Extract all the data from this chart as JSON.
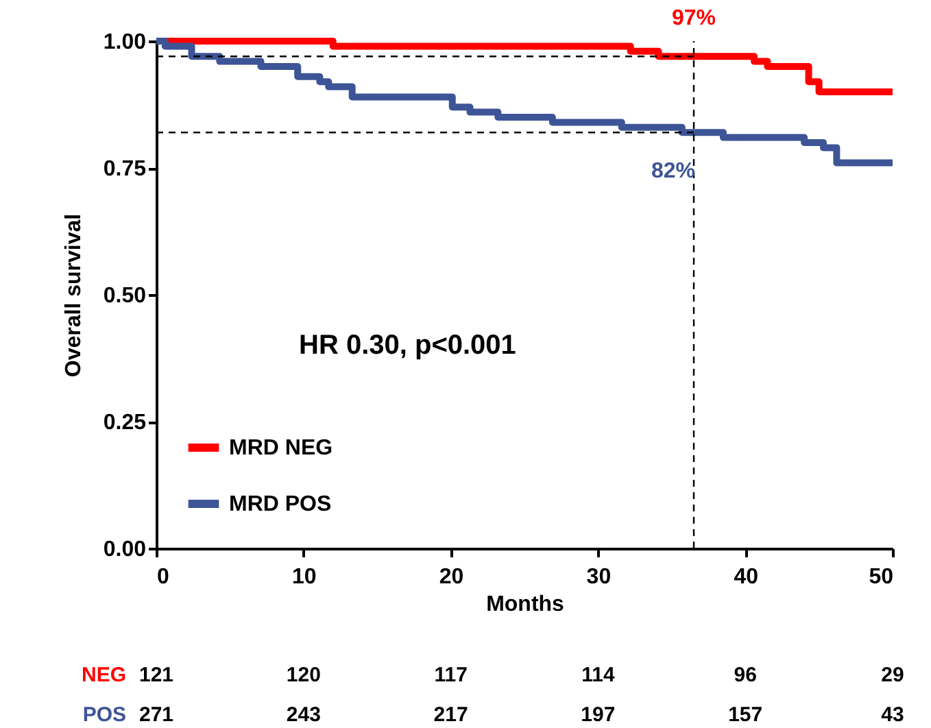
{
  "chart_data": {
    "type": "step",
    "xlabel": "Months",
    "ylabel": "Overall survival",
    "xlim": [
      0,
      50
    ],
    "xticks": [
      0,
      10,
      20,
      30,
      40,
      50
    ],
    "ylim": [
      0,
      1
    ],
    "yticks": [
      {
        "value": 0,
        "label": "0.00"
      },
      {
        "value": 0.25,
        "label": "0.25"
      },
      {
        "value": 0.5,
        "label": "0.50"
      },
      {
        "value": 0.75,
        "label": "0.75"
      },
      {
        "value": 1,
        "label": "1.00"
      }
    ],
    "grid": false,
    "legend": "bottom left",
    "line_style": "solid",
    "marker": "none",
    "series": [
      {
        "name": "MRD NEG",
        "color": "#ff0000",
        "x": [
          0,
          12.0,
          29.4,
          32.2,
          34.1,
          40.6,
          41.5,
          44.3,
          45.0,
          50
        ],
        "values": [
          1.0,
          0.99,
          0.99,
          0.98,
          0.97,
          0.96,
          0.95,
          0.92,
          0.9,
          0.9
        ]
      },
      {
        "name": "MRD POS",
        "color": "#3d5496",
        "x": [
          0,
          0.6,
          2.4,
          4.3,
          7.1,
          9.6,
          11.1,
          11.7,
          13.3,
          16.1,
          20.1,
          21.3,
          23.2,
          26.9,
          31.6,
          35.7,
          38.5,
          44.0,
          45.3,
          46.2,
          50
        ],
        "values": [
          1.0,
          0.99,
          0.97,
          0.96,
          0.95,
          0.93,
          0.92,
          0.91,
          0.89,
          0.89,
          0.87,
          0.86,
          0.85,
          0.84,
          0.83,
          0.82,
          0.81,
          0.8,
          0.79,
          0.76,
          0.76
        ]
      }
    ],
    "ref_lines": [
      {
        "axis": "x",
        "value": 36.5,
        "line_style": "dashed",
        "color": "#000000"
      },
      {
        "axis": "y",
        "value": 0.97,
        "line_style": "dashed",
        "color": "#000000"
      },
      {
        "axis": "y",
        "value": 0.82,
        "line_style": "dashed",
        "color": "#000000"
      }
    ],
    "annotations": [
      "HR 0.30, p<0.001",
      {
        "text": "97%",
        "x": 36.5,
        "y": 0.97
      },
      {
        "text": "82%",
        "x": 36.5,
        "y": 0.82
      },
      "NEG",
      "121",
      "120",
      "117",
      "114",
      "96",
      "29",
      "POS",
      "271",
      "243",
      "217",
      "197",
      "157",
      "43"
    ]
  }
}
